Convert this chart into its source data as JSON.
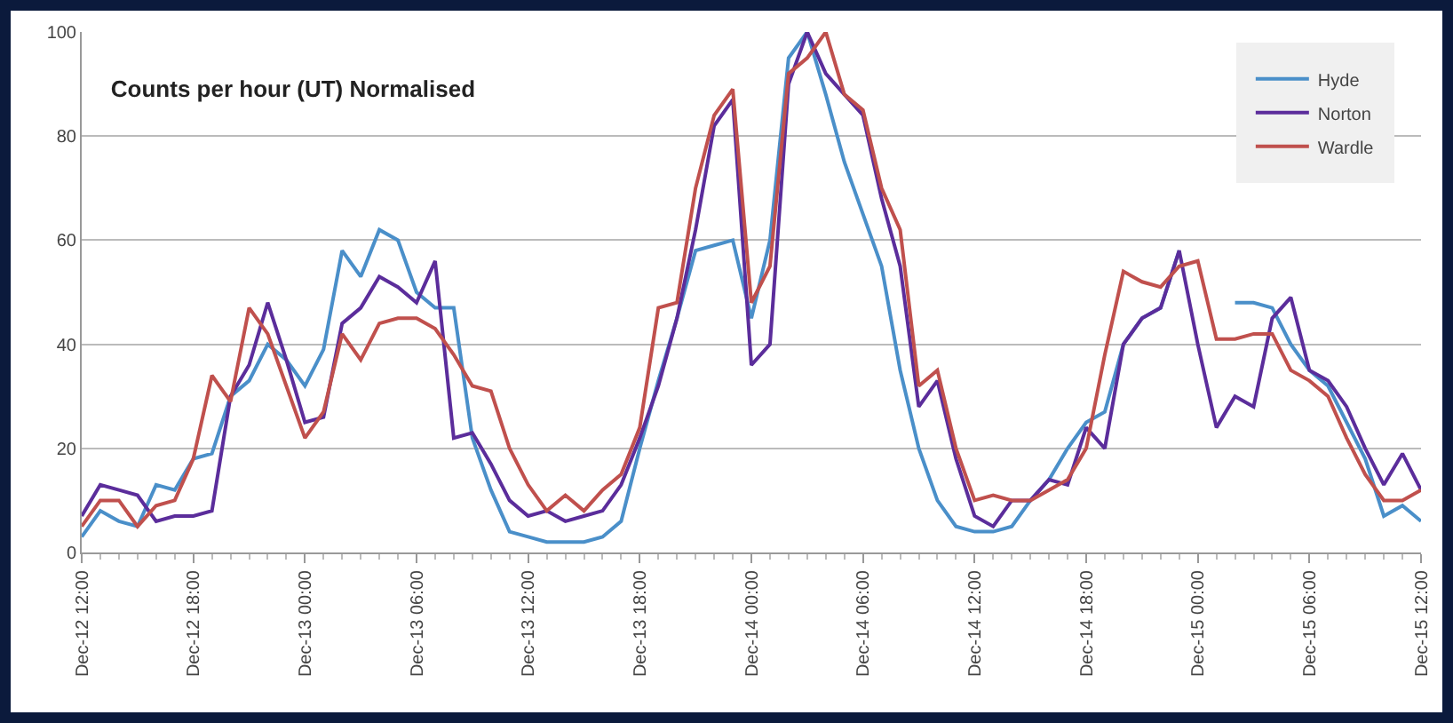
{
  "chart_data": {
    "type": "line",
    "title": "Counts per hour (UT) Normalised",
    "x": [
      "--12-12T12:00",
      "--12-12T13:00",
      "--12-12T14:00",
      "--12-12T15:00",
      "--12-12T16:00",
      "--12-12T17:00",
      "--12-12T18:00",
      "--12-12T19:00",
      "--12-12T20:00",
      "--12-12T21:00",
      "--12-12T22:00",
      "--12-12T23:00",
      "--12-13T00:00",
      "--12-13T01:00",
      "--12-13T02:00",
      "--12-13T03:00",
      "--12-13T04:00",
      "--12-13T05:00",
      "--12-13T06:00",
      "--12-13T07:00",
      "--12-13T08:00",
      "--12-13T09:00",
      "--12-13T10:00",
      "--12-13T11:00",
      "--12-13T12:00",
      "--12-13T13:00",
      "--12-13T14:00",
      "--12-13T15:00",
      "--12-13T16:00",
      "--12-13T17:00",
      "--12-13T18:00",
      "--12-13T19:00",
      "--12-13T20:00",
      "--12-13T21:00",
      "--12-13T22:00",
      "--12-13T23:00",
      "--12-14T00:00",
      "--12-14T01:00",
      "--12-14T02:00",
      "--12-14T03:00",
      "--12-14T04:00",
      "--12-14T05:00",
      "--12-14T06:00",
      "--12-14T07:00",
      "--12-14T08:00",
      "--12-14T09:00",
      "--12-14T10:00",
      "--12-14T11:00",
      "--12-14T12:00",
      "--12-14T13:00",
      "--12-14T14:00",
      "--12-14T15:00",
      "--12-14T16:00",
      "--12-14T17:00",
      "--12-14T18:00",
      "--12-14T19:00",
      "--12-14T20:00",
      "--12-14T21:00",
      "--12-14T22:00",
      "--12-14T23:00",
      "--12-15T00:00",
      "--12-15T01:00",
      "--12-15T02:00",
      "--12-15T03:00",
      "--12-15T04:00",
      "--12-15T05:00",
      "--12-15T06:00",
      "--12-15T07:00",
      "--12-15T08:00",
      "--12-15T09:00",
      "--12-15T10:00",
      "--12-15T11:00",
      "--12-15T12:00"
    ],
    "series": [
      {
        "name": "Hyde",
        "color": "#4a8fc9",
        "values": [
          3,
          8,
          6,
          5,
          13,
          12,
          18,
          19,
          30,
          33,
          40,
          37,
          32,
          39,
          58,
          53,
          62,
          60,
          50,
          47,
          47,
          22,
          12,
          4,
          3,
          2,
          2,
          2,
          3,
          6,
          20,
          33,
          45,
          58,
          59,
          60,
          45,
          60,
          95,
          100,
          88,
          75,
          65,
          55,
          35,
          20,
          10,
          5,
          4,
          4,
          5,
          10,
          14,
          20,
          25,
          27,
          40,
          45,
          47,
          58,
          null,
          null,
          48,
          48,
          47,
          40,
          35,
          32,
          25,
          18,
          7,
          9,
          6
        ]
      },
      {
        "name": "Norton",
        "color": "#5b2d9b",
        "values": [
          7,
          13,
          12,
          11,
          6,
          7,
          7,
          8,
          30,
          36,
          48,
          37,
          25,
          26,
          44,
          47,
          53,
          51,
          48,
          56,
          22,
          23,
          17,
          10,
          7,
          8,
          6,
          7,
          8,
          13,
          22,
          32,
          45,
          62,
          82,
          87,
          36,
          40,
          90,
          100,
          92,
          88,
          84,
          68,
          55,
          28,
          33,
          18,
          7,
          5,
          10,
          10,
          14,
          13,
          24,
          20,
          40,
          45,
          47,
          58,
          40,
          24,
          30,
          28,
          45,
          49,
          35,
          33,
          28,
          20,
          13,
          19,
          12
        ]
      },
      {
        "name": "Wardle",
        "color": "#c0504d",
        "values": [
          5,
          10,
          10,
          5,
          9,
          10,
          18,
          34,
          29,
          47,
          42,
          32,
          22,
          27,
          42,
          37,
          44,
          45,
          45,
          43,
          38,
          32,
          31,
          20,
          13,
          8,
          11,
          8,
          12,
          15,
          24,
          47,
          48,
          70,
          84,
          89,
          48,
          55,
          92,
          95,
          100,
          88,
          85,
          70,
          62,
          32,
          35,
          20,
          10,
          11,
          10,
          10,
          12,
          14,
          20,
          38,
          54,
          52,
          51,
          55,
          56,
          41,
          41,
          42,
          42,
          35,
          33,
          30,
          22,
          15,
          10,
          10,
          12
        ]
      }
    ],
    "xlim": [
      "--12-12T12:00",
      "--12-15T12:00"
    ],
    "xticks": [
      {
        "value": "--12-12T12:00",
        "label": "Dec-12 12:00"
      },
      {
        "value": "--12-12T18:00",
        "label": "Dec-12 18:00"
      },
      {
        "value": "--12-13T00:00",
        "label": "Dec-13 00:00"
      },
      {
        "value": "--12-13T06:00",
        "label": "Dec-13 06:00"
      },
      {
        "value": "--12-13T12:00",
        "label": "Dec-13 12:00"
      },
      {
        "value": "--12-13T18:00",
        "label": "Dec-13 18:00"
      },
      {
        "value": "--12-14T00:00",
        "label": "Dec-14 00:00"
      },
      {
        "value": "--12-14T06:00",
        "label": "Dec-14 06:00"
      },
      {
        "value": "--12-14T12:00",
        "label": "Dec-14 12:00"
      },
      {
        "value": "--12-14T18:00",
        "label": "Dec-14 18:00"
      },
      {
        "value": "--12-15T00:00",
        "label": "Dec-15 00:00"
      },
      {
        "value": "--12-15T06:00",
        "label": "Dec-15 06:00"
      },
      {
        "value": "--12-15T12:00",
        "label": "Dec-15 12:00"
      }
    ],
    "ylim": [
      0,
      100
    ],
    "yticks": [
      0,
      20,
      40,
      60,
      80,
      100
    ],
    "grid": "y",
    "legend": "top right",
    "marker": "none",
    "line_style": "solid"
  }
}
